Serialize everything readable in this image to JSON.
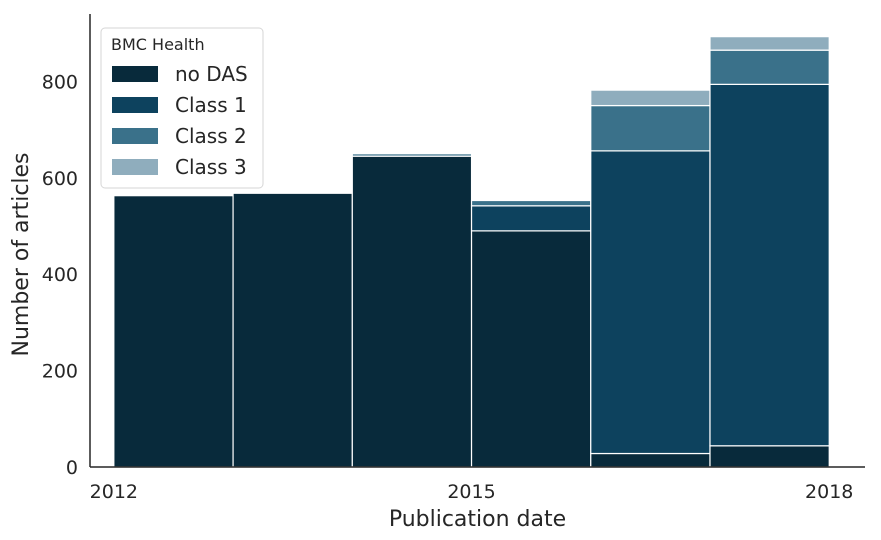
{
  "chart_data": {
    "type": "bar",
    "stacked": true,
    "xlabel": "Publication date",
    "ylabel": "Number of articles",
    "ylim": [
      0,
      940
    ],
    "yticks": [
      0,
      200,
      400,
      600,
      800
    ],
    "xticks": [
      "2012",
      "2015",
      "2018"
    ],
    "xlim": [
      2011.8,
      2018.3
    ],
    "bins": [
      [
        2012.0,
        2013.0
      ],
      [
        2013.0,
        2014.0
      ],
      [
        2014.0,
        2015.0
      ],
      [
        2015.0,
        2016.0
      ],
      [
        2016.0,
        2017.0
      ],
      [
        2017.0,
        2018.0
      ]
    ],
    "series": [
      {
        "name": "no DAS",
        "color": "#082a3b",
        "values": [
          563,
          568,
          645,
          490,
          28,
          44
        ]
      },
      {
        "name": "Class 1",
        "color": "#0d425e",
        "values": [
          0,
          0,
          0,
          52,
          628,
          750
        ]
      },
      {
        "name": "Class 2",
        "color": "#3a718a",
        "values": [
          0,
          0,
          5,
          11,
          94,
          71
        ]
      },
      {
        "name": "Class 3",
        "color": "#8fadbd",
        "values": [
          0,
          0,
          0,
          0,
          32,
          28
        ]
      }
    ],
    "grid": false,
    "legend": {
      "title": "BMC Health",
      "placement": "top-left"
    }
  }
}
